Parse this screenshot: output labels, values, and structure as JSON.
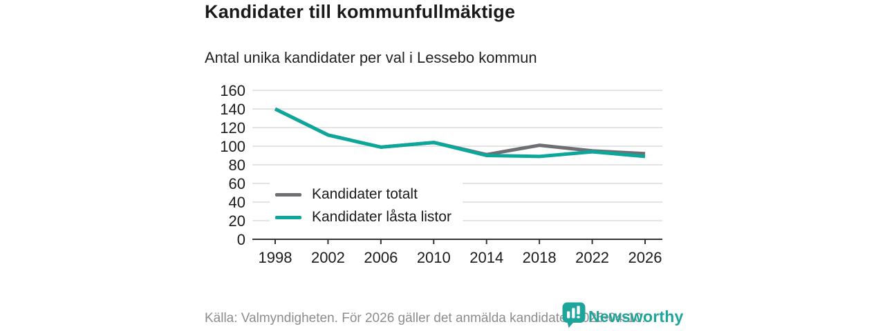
{
  "title": "Kandidater till kommunfullmäktige",
  "subtitle": "Antal unika kandidater per val i Lessebo kommun",
  "footer": {
    "source": "Källa: Valmyndigheten. För 2026 gäller det anmälda kandidater 2026-04-10."
  },
  "branding": {
    "logo_text": "Newsworthy",
    "logo_icon": "bar-chart-speech-bubble-icon"
  },
  "colors": {
    "total": "#6e6f72",
    "locked": "#0ba79b",
    "grid": "#dcdcdc",
    "axis": "#333333",
    "text": "#1a1a1a",
    "muted": "#8c8c8c",
    "brand": "#1da49b"
  },
  "chart_data": {
    "type": "line",
    "title": "Kandidater till kommunfullmäktige",
    "subtitle": "Antal unika kandidater per val i Lessebo kommun",
    "x": [
      1998,
      2002,
      2006,
      2010,
      2014,
      2018,
      2022,
      2026
    ],
    "series": [
      {
        "name": "Kandidater totalt",
        "color_key": "total",
        "values": [
          140,
          112,
          99,
          104,
          91,
          101,
          95,
          92
        ]
      },
      {
        "name": "Kandidater låsta listor",
        "color_key": "locked",
        "values": [
          140,
          112,
          99,
          104,
          90,
          89,
          94,
          89
        ]
      }
    ],
    "ylim": [
      0,
      160
    ],
    "ytick_step": 20,
    "grid": true,
    "legend_position": "inside-left-bottom"
  }
}
